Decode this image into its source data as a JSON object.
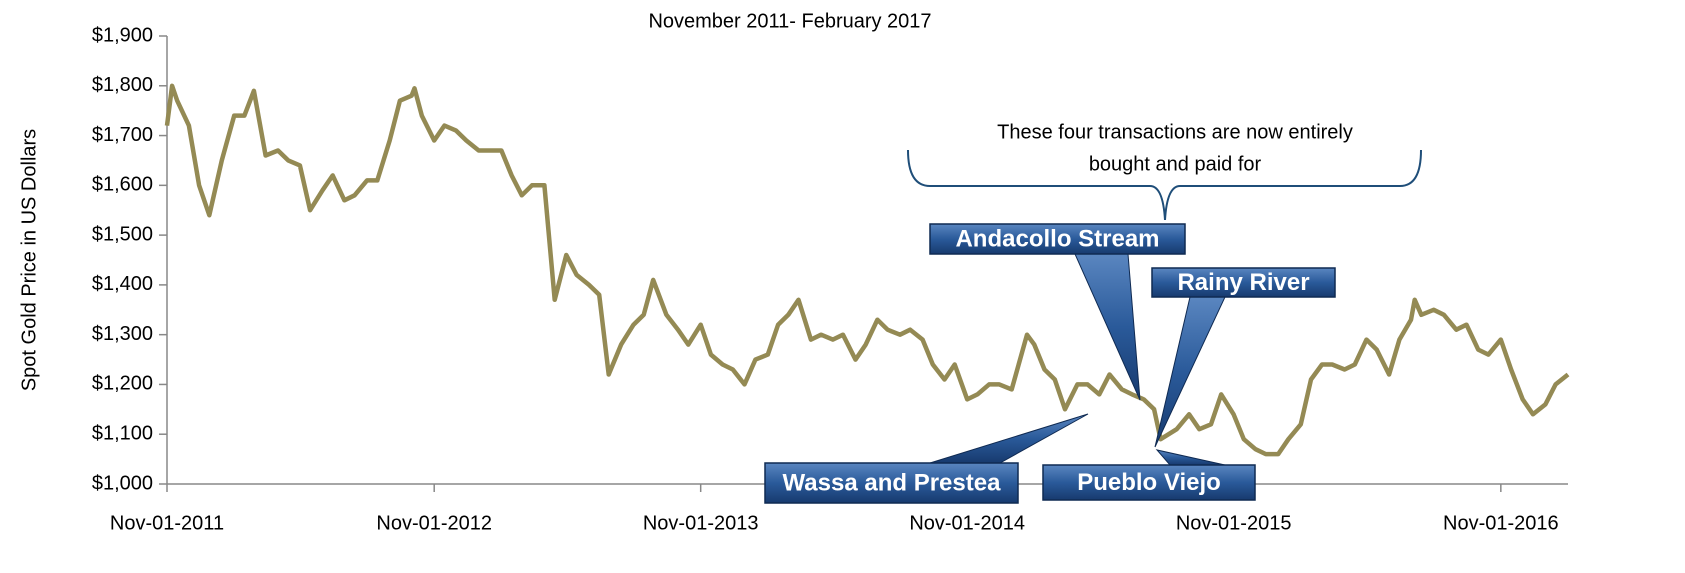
{
  "chart_data": {
    "type": "line",
    "title": "November 2011- February 2017",
    "y_label": "Spot Gold Price in US Dollars",
    "brace_text": [
      "These four transactions are now entirely",
      "bought and paid for"
    ],
    "callouts": [
      "Andacollo Stream",
      "Rainy River",
      "Wassa and Prestea",
      "Pueblo Viejo"
    ],
    "color": "#948a54",
    "xlim": [
      "2011-11-01",
      "2017-02-01"
    ],
    "ylim": [
      1000,
      1900
    ],
    "yticks": [
      {
        "value": 1000,
        "label": "$1,000"
      },
      {
        "value": 1100,
        "label": "$1,100"
      },
      {
        "value": 1200,
        "label": "$1,200"
      },
      {
        "value": 1300,
        "label": "$1,300"
      },
      {
        "value": 1400,
        "label": "$1,400"
      },
      {
        "value": 1500,
        "label": "$1,500"
      },
      {
        "value": 1600,
        "label": "$1,600"
      },
      {
        "value": 1700,
        "label": "$1,700"
      },
      {
        "value": 1800,
        "label": "$1,800"
      },
      {
        "value": 1900,
        "label": "$1,900"
      }
    ],
    "xticks": [
      {
        "value": "2011-11-01",
        "label": "Nov-01-2011"
      },
      {
        "value": "2012-11-01",
        "label": "Nov-01-2012"
      },
      {
        "value": "2013-11-01",
        "label": "Nov-01-2013"
      },
      {
        "value": "2014-11-01",
        "label": "Nov-01-2014"
      },
      {
        "value": "2015-11-01",
        "label": "Nov-01-2015"
      },
      {
        "value": "2016-11-01",
        "label": "Nov-01-2016"
      }
    ],
    "x": [
      "2011-11-01",
      "2011-11-08",
      "2011-11-15",
      "2011-12-01",
      "2011-12-15",
      "2011-12-29",
      "2012-01-15",
      "2012-02-01",
      "2012-02-15",
      "2012-02-28",
      "2012-03-15",
      "2012-04-01",
      "2012-04-15",
      "2012-05-01",
      "2012-05-15",
      "2012-06-01",
      "2012-06-15",
      "2012-07-01",
      "2012-07-15",
      "2012-08-01",
      "2012-08-15",
      "2012-09-01",
      "2012-09-15",
      "2012-10-01",
      "2012-10-05",
      "2012-10-15",
      "2012-11-01",
      "2012-11-15",
      "2012-12-01",
      "2012-12-15",
      "2013-01-01",
      "2013-01-15",
      "2013-02-01",
      "2013-02-15",
      "2013-03-01",
      "2013-03-15",
      "2013-04-01",
      "2013-04-15",
      "2013-05-01",
      "2013-05-15",
      "2013-06-01",
      "2013-06-15",
      "2013-06-28",
      "2013-07-15",
      "2013-08-01",
      "2013-08-15",
      "2013-08-28",
      "2013-09-15",
      "2013-10-01",
      "2013-10-15",
      "2013-11-01",
      "2013-11-15",
      "2013-12-01",
      "2013-12-15",
      "2013-12-31",
      "2014-01-15",
      "2014-02-01",
      "2014-02-15",
      "2014-03-01",
      "2014-03-15",
      "2014-04-01",
      "2014-04-15",
      "2014-05-01",
      "2014-05-15",
      "2014-06-01",
      "2014-06-15",
      "2014-07-01",
      "2014-07-15",
      "2014-08-01",
      "2014-08-15",
      "2014-09-01",
      "2014-09-15",
      "2014-10-01",
      "2014-10-15",
      "2014-11-01",
      "2014-11-15",
      "2014-12-01",
      "2014-12-15",
      "2015-01-01",
      "2015-01-22",
      "2015-02-01",
      "2015-02-15",
      "2015-03-01",
      "2015-03-15",
      "2015-04-01",
      "2015-04-15",
      "2015-05-01",
      "2015-05-15",
      "2015-06-01",
      "2015-06-15",
      "2015-07-01",
      "2015-07-15",
      "2015-07-24",
      "2015-08-15",
      "2015-09-01",
      "2015-09-15",
      "2015-10-01",
      "2015-10-15",
      "2015-11-01",
      "2015-11-15",
      "2015-12-01",
      "2015-12-15",
      "2016-01-01",
      "2016-01-15",
      "2016-02-01",
      "2016-02-15",
      "2016-03-01",
      "2016-03-15",
      "2016-04-01",
      "2016-04-15",
      "2016-05-01",
      "2016-05-15",
      "2016-06-01",
      "2016-06-15",
      "2016-07-01",
      "2016-07-06",
      "2016-07-15",
      "2016-08-01",
      "2016-08-15",
      "2016-09-01",
      "2016-09-15",
      "2016-10-01",
      "2016-10-15",
      "2016-11-01",
      "2016-11-15",
      "2016-12-01",
      "2016-12-15",
      "2017-01-01",
      "2017-01-15",
      "2017-02-01"
    ],
    "values": [
      1720,
      1800,
      1770,
      1720,
      1600,
      1540,
      1650,
      1740,
      1740,
      1790,
      1660,
      1670,
      1650,
      1640,
      1550,
      1590,
      1620,
      1570,
      1580,
      1610,
      1610,
      1690,
      1770,
      1780,
      1795,
      1740,
      1690,
      1720,
      1710,
      1690,
      1670,
      1670,
      1670,
      1620,
      1580,
      1600,
      1600,
      1370,
      1460,
      1420,
      1400,
      1380,
      1220,
      1280,
      1320,
      1340,
      1410,
      1340,
      1310,
      1280,
      1320,
      1260,
      1240,
      1230,
      1200,
      1250,
      1260,
      1320,
      1340,
      1370,
      1290,
      1300,
      1290,
      1300,
      1250,
      1280,
      1330,
      1310,
      1300,
      1310,
      1290,
      1240,
      1210,
      1240,
      1170,
      1180,
      1200,
      1200,
      1190,
      1300,
      1280,
      1230,
      1210,
      1150,
      1200,
      1200,
      1180,
      1220,
      1190,
      1180,
      1170,
      1150,
      1090,
      1110,
      1140,
      1110,
      1120,
      1180,
      1140,
      1090,
      1070,
      1060,
      1060,
      1090,
      1120,
      1210,
      1240,
      1240,
      1230,
      1240,
      1290,
      1270,
      1220,
      1290,
      1330,
      1370,
      1340,
      1350,
      1340,
      1310,
      1320,
      1270,
      1260,
      1290,
      1230,
      1170,
      1140,
      1160,
      1200,
      1220
    ]
  }
}
